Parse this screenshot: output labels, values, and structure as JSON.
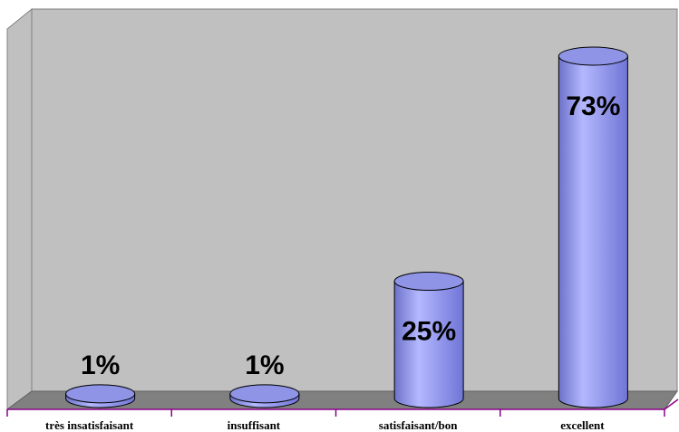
{
  "chart_data": {
    "type": "bar",
    "style": "3d-cylinder",
    "categories": [
      "très insatisfaisant",
      "insuffisant",
      "satisfaisant/bon",
      "excellent"
    ],
    "values": [
      1,
      1,
      25,
      73
    ],
    "value_labels": [
      "1%",
      "1%",
      "25%",
      "73%"
    ],
    "title": "",
    "xlabel": "",
    "ylabel": "",
    "ylim": [
      0,
      100
    ],
    "grid": false,
    "legend": "none",
    "colors": {
      "bar": "#8f94e6",
      "bar_edge": "#000000",
      "wall": "#c0c0c0",
      "floor": "#808080",
      "axis": "#8b008b"
    }
  }
}
